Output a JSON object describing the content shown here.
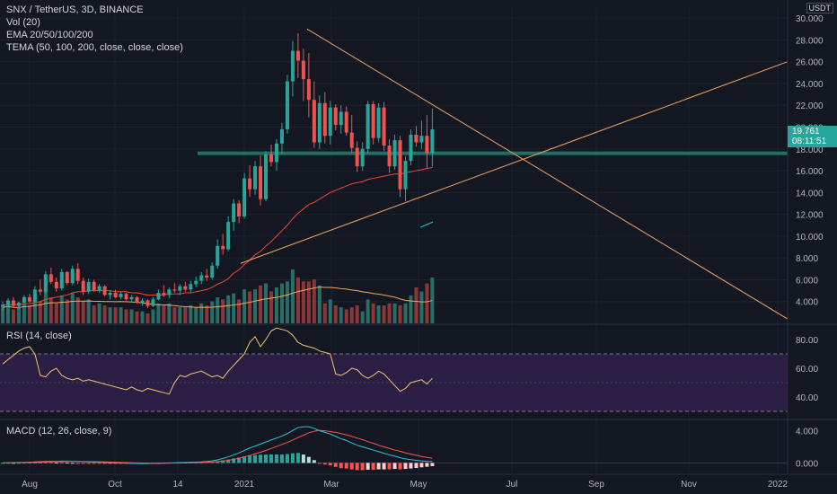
{
  "legend": {
    "title": "SNX / TetherUS, 3D, BINANCE",
    "vol": "Vol (20)",
    "ema": "EMA 20/50/100/200",
    "tema": "TEMA (50, 100, 200, close, close, close)",
    "rsi": "RSI (14, close)",
    "macd": "MACD (12, 26, close, 9)"
  },
  "price_badge": {
    "price": "19.761",
    "countdown": "08:11:51",
    "currency": "USDT"
  },
  "colors": {
    "background": "#131722",
    "grid": "#1e222d",
    "up": "#26a69a",
    "down": "#ef5350",
    "trendline": "#f7a35c",
    "ema": "#f44336",
    "tema": "#26c6da",
    "rsi": "#f5c26b",
    "rsi_band": "#2a1e45",
    "macd": "#26c6da",
    "signal": "#ff5252",
    "hline": "#1f6f62",
    "axis_text": "#b2b5be"
  },
  "chart_data": {
    "type": "candlestick",
    "symbol": "SNX / TetherUS",
    "interval": "3D",
    "exchange": "BINANCE",
    "x_ticks": [
      "Aug",
      "Oct",
      "14",
      "2021",
      "Mar",
      "May",
      "Jul",
      "Sep",
      "Nov",
      "2022"
    ],
    "y_ticks": [
      "4.000",
      "6.000",
      "8.000",
      "10.000",
      "12.000",
      "14.000",
      "16.000",
      "18.000",
      "20.000",
      "22.000",
      "24.000",
      "26.000",
      "28.000",
      "30.000"
    ],
    "price_range": [
      2.0,
      31.0
    ],
    "rsi_ticks": [
      "40.00",
      "60.00",
      "80.00"
    ],
    "rsi_range": [
      25,
      90
    ],
    "rsi_bands": [
      30,
      70
    ],
    "macd_ticks": [
      "0.000",
      "4.000"
    ],
    "macd_range": [
      -1.3,
      5.3
    ],
    "horizontal_levels": [
      17.6
    ],
    "ohlc": [
      [
        3.5,
        4.0,
        3.2,
        3.7
      ],
      [
        3.7,
        4.3,
        3.5,
        4.1
      ],
      [
        4.1,
        4.4,
        3.4,
        3.6
      ],
      [
        3.6,
        4.0,
        3.3,
        3.9
      ],
      [
        3.9,
        4.6,
        3.8,
        4.4
      ],
      [
        4.4,
        4.7,
        3.9,
        4.0
      ],
      [
        4.0,
        5.4,
        3.9,
        5.1
      ],
      [
        5.1,
        6.0,
        4.6,
        4.9
      ],
      [
        4.9,
        6.8,
        4.7,
        6.5
      ],
      [
        6.5,
        7.1,
        5.6,
        5.8
      ],
      [
        5.8,
        6.2,
        4.9,
        5.2
      ],
      [
        5.2,
        7.0,
        5.0,
        6.7
      ],
      [
        6.7,
        6.8,
        5.5,
        5.7
      ],
      [
        5.7,
        7.3,
        5.5,
        7.0
      ],
      [
        7.0,
        7.5,
        5.6,
        5.9
      ],
      [
        5.9,
        6.2,
        4.6,
        4.9
      ],
      [
        4.9,
        6.1,
        4.7,
        5.8
      ],
      [
        5.8,
        6.0,
        4.9,
        5.0
      ],
      [
        5.0,
        5.6,
        4.8,
        5.4
      ],
      [
        5.4,
        5.5,
        4.5,
        4.6
      ],
      [
        4.6,
        5.0,
        4.2,
        4.8
      ],
      [
        4.8,
        5.1,
        4.3,
        4.4
      ],
      [
        4.4,
        4.9,
        4.2,
        4.7
      ],
      [
        4.7,
        4.8,
        4.1,
        4.2
      ],
      [
        4.2,
        4.6,
        3.9,
        4.4
      ],
      [
        4.4,
        4.5,
        3.8,
        3.9
      ],
      [
        3.9,
        4.3,
        3.6,
        4.1
      ],
      [
        4.1,
        4.2,
        3.4,
        3.6
      ],
      [
        3.6,
        4.4,
        3.5,
        4.2
      ],
      [
        4.2,
        5.1,
        4.1,
        4.8
      ],
      [
        4.8,
        5.5,
        4.4,
        4.6
      ],
      [
        4.6,
        5.3,
        4.3,
        5.1
      ],
      [
        5.1,
        5.7,
        4.8,
        5.0
      ],
      [
        5.0,
        5.6,
        4.6,
        5.4
      ],
      [
        5.4,
        5.8,
        4.9,
        5.1
      ],
      [
        5.1,
        5.9,
        4.8,
        5.6
      ],
      [
        5.6,
        6.3,
        5.3,
        5.9
      ],
      [
        5.9,
        6.7,
        5.6,
        6.4
      ],
      [
        6.4,
        7.0,
        5.9,
        6.2
      ],
      [
        6.2,
        7.6,
        6.0,
        7.3
      ],
      [
        7.3,
        9.7,
        7.0,
        9.1
      ],
      [
        9.1,
        10.2,
        8.3,
        8.8
      ],
      [
        8.8,
        11.8,
        8.6,
        11.3
      ],
      [
        11.3,
        13.4,
        10.5,
        13.0
      ],
      [
        13.0,
        13.3,
        11.2,
        11.8
      ],
      [
        11.8,
        15.8,
        11.6,
        15.3
      ],
      [
        15.3,
        16.5,
        13.6,
        14.3
      ],
      [
        14.3,
        16.9,
        13.8,
        16.4
      ],
      [
        16.4,
        17.4,
        12.8,
        13.4
      ],
      [
        13.4,
        17.8,
        13.2,
        17.5
      ],
      [
        17.5,
        18.4,
        16.4,
        16.8
      ],
      [
        16.8,
        18.9,
        16.0,
        18.5
      ],
      [
        18.5,
        20.4,
        17.5,
        19.8
      ],
      [
        19.8,
        24.8,
        19.4,
        24.2
      ],
      [
        24.2,
        27.9,
        22.8,
        27.0
      ],
      [
        27.0,
        28.6,
        24.5,
        26.1
      ],
      [
        26.1,
        27.2,
        22.4,
        24.4
      ],
      [
        24.4,
        26.8,
        20.9,
        22.5
      ],
      [
        22.5,
        24.2,
        18.1,
        18.6
      ],
      [
        18.6,
        22.9,
        18.0,
        22.2
      ],
      [
        22.2,
        23.2,
        18.5,
        19.2
      ],
      [
        19.2,
        22.4,
        18.4,
        21.8
      ],
      [
        21.8,
        22.1,
        19.7,
        20.2
      ],
      [
        20.2,
        22.0,
        19.4,
        21.4
      ],
      [
        21.4,
        21.9,
        19.2,
        19.5
      ],
      [
        19.5,
        21.1,
        17.6,
        18.1
      ],
      [
        18.1,
        18.7,
        15.9,
        16.4
      ],
      [
        16.4,
        18.6,
        16.0,
        18.0
      ],
      [
        18.0,
        22.4,
        17.6,
        22.1
      ],
      [
        22.1,
        22.4,
        18.4,
        19.0
      ],
      [
        19.0,
        22.2,
        18.6,
        21.8
      ],
      [
        21.8,
        22.3,
        17.8,
        18.3
      ],
      [
        18.3,
        18.9,
        15.8,
        16.4
      ],
      [
        16.4,
        19.3,
        16.1,
        18.8
      ],
      [
        18.8,
        19.2,
        13.6,
        14.3
      ],
      [
        14.3,
        17.3,
        13.2,
        16.9
      ],
      [
        16.9,
        19.8,
        16.5,
        19.3
      ],
      [
        19.3,
        20.1,
        18.2,
        18.6
      ],
      [
        18.6,
        20.6,
        18.0,
        19.2
      ],
      [
        19.2,
        21.1,
        16.2,
        17.6
      ],
      [
        17.6,
        21.7,
        16.4,
        19.8
      ]
    ],
    "volume": [
      0.8,
      0.9,
      0.7,
      0.8,
      1.0,
      0.9,
      1.2,
      1.1,
      1.6,
      1.3,
      1.0,
      1.4,
      1.2,
      1.5,
      1.3,
      1.1,
      1.2,
      0.9,
      1.0,
      0.9,
      0.8,
      0.8,
      0.8,
      0.7,
      0.7,
      0.6,
      0.6,
      0.5,
      0.7,
      1.0,
      0.9,
      1.0,
      0.8,
      0.8,
      0.8,
      0.9,
      0.8,
      1.0,
      0.9,
      1.1,
      1.3,
      1.2,
      1.4,
      1.5,
      1.2,
      1.7,
      1.6,
      1.7,
      1.9,
      2.0,
      1.6,
      1.8,
      2.0,
      2.1,
      2.7,
      2.3,
      2.1,
      2.1,
      2.2,
      1.9,
      1.0,
      1.2,
      0.9,
      0.8,
      0.7,
      0.8,
      0.9,
      0.6,
      1.2,
      1.0,
      0.9,
      0.9,
      1.0,
      1.0,
      0.9,
      1.0,
      1.4,
      1.8,
      1.6,
      2.0,
      2.3
    ],
    "ema": [
      3.7,
      3.7,
      3.7,
      3.7,
      3.8,
      3.8,
      3.9,
      4.0,
      4.2,
      4.3,
      4.4,
      4.5,
      4.6,
      4.8,
      4.9,
      4.9,
      5.0,
      5.0,
      5.0,
      5.0,
      5.0,
      4.9,
      4.9,
      4.9,
      4.8,
      4.8,
      4.7,
      4.6,
      4.6,
      4.6,
      4.6,
      4.7,
      4.7,
      4.7,
      4.8,
      4.8,
      4.9,
      5.0,
      5.1,
      5.3,
      5.6,
      5.8,
      6.1,
      6.6,
      6.9,
      7.4,
      7.8,
      8.3,
      8.6,
      9.1,
      9.5,
      10.0,
      10.5,
      11.0,
      11.6,
      12.1,
      12.5,
      12.9,
      13.1,
      13.4,
      13.7,
      14.0,
      14.2,
      14.4,
      14.6,
      14.8,
      14.9,
      15.0,
      15.2,
      15.3,
      15.4,
      15.5,
      15.6,
      15.7,
      15.7,
      15.8,
      15.9,
      16.0,
      16.1,
      16.2,
      16.3
    ],
    "rsi": [
      63,
      66,
      69,
      72,
      74,
      75,
      70,
      55,
      54,
      58,
      60,
      55,
      53,
      52,
      53,
      51,
      52,
      51,
      50,
      49,
      48,
      47,
      46,
      45,
      47,
      45,
      44,
      46,
      45,
      44,
      43,
      42,
      50,
      55,
      54,
      56,
      57,
      58,
      56,
      54,
      55,
      53,
      58,
      62,
      66,
      70,
      78,
      82,
      75,
      80,
      86,
      88,
      87,
      86,
      83,
      78,
      76,
      75,
      74,
      72,
      71,
      70,
      56,
      55,
      57,
      60,
      59,
      55,
      53,
      55,
      58,
      56,
      52,
      48,
      44,
      46,
      50,
      51,
      52,
      49,
      53
    ],
    "macd": [
      0.0,
      0.02,
      0.03,
      0.05,
      0.07,
      0.09,
      0.12,
      0.15,
      0.18,
      0.2,
      0.2,
      0.22,
      0.22,
      0.2,
      0.18,
      0.15,
      0.12,
      0.1,
      0.08,
      0.05,
      0.02,
      0.0,
      -0.02,
      -0.04,
      -0.06,
      -0.07,
      -0.08,
      -0.08,
      -0.07,
      -0.05,
      -0.02,
      0.0,
      0.02,
      0.04,
      0.06,
      0.08,
      0.1,
      0.13,
      0.18,
      0.25,
      0.38,
      0.55,
      0.75,
      1.0,
      1.25,
      1.55,
      1.85,
      2.1,
      2.35,
      2.6,
      2.85,
      3.1,
      3.35,
      3.65,
      4.05,
      4.4,
      4.5,
      4.5,
      4.3,
      4.0,
      3.8,
      3.6,
      3.3,
      3.0,
      2.8,
      2.5,
      2.2,
      2.0,
      1.8,
      1.6,
      1.4,
      1.2,
      1.0,
      0.85,
      0.65,
      0.5,
      0.4,
      0.32,
      0.25,
      0.2,
      0.18
    ],
    "signal": [
      0.0,
      0.01,
      0.02,
      0.03,
      0.04,
      0.05,
      0.07,
      0.09,
      0.11,
      0.13,
      0.15,
      0.16,
      0.18,
      0.19,
      0.19,
      0.18,
      0.17,
      0.16,
      0.14,
      0.12,
      0.1,
      0.08,
      0.06,
      0.04,
      0.02,
      0.0,
      -0.02,
      -0.03,
      -0.04,
      -0.04,
      -0.04,
      -0.03,
      -0.02,
      -0.01,
      0.01,
      0.02,
      0.04,
      0.06,
      0.08,
      0.11,
      0.16,
      0.23,
      0.32,
      0.44,
      0.58,
      0.74,
      0.93,
      1.13,
      1.33,
      1.55,
      1.8,
      2.05,
      2.3,
      2.55,
      2.85,
      3.15,
      3.45,
      3.75,
      3.95,
      4.05,
      4.0,
      3.9,
      3.8,
      3.65,
      3.5,
      3.3,
      3.1,
      2.9,
      2.65,
      2.45,
      2.2,
      2.0,
      1.8,
      1.6,
      1.45,
      1.25,
      1.1,
      0.95,
      0.8,
      0.68,
      0.58
    ]
  }
}
